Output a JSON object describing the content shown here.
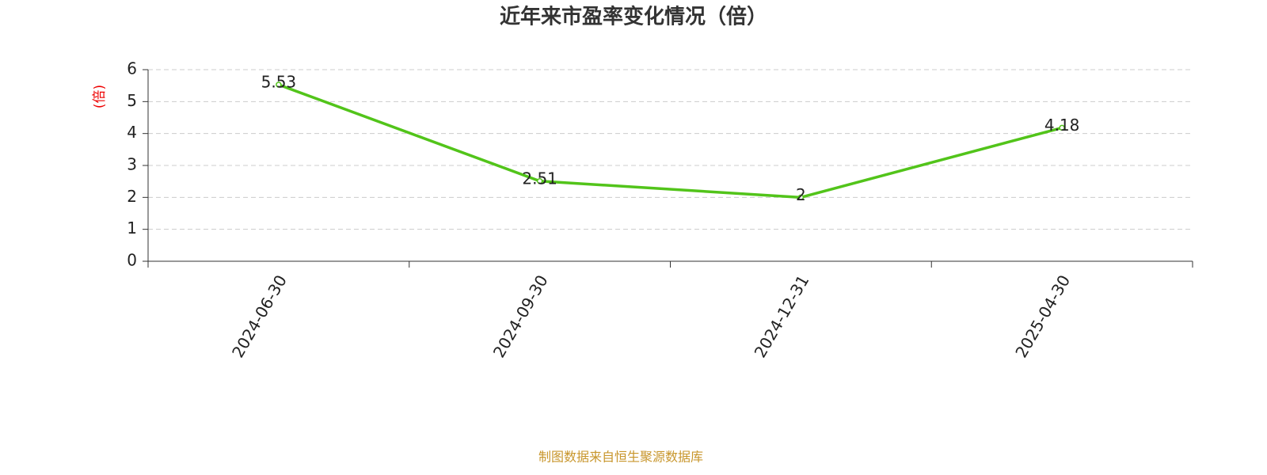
{
  "chart_data": {
    "type": "line",
    "title": "近年来市盈率变化情况（倍）",
    "y_label": "(倍)",
    "categories": [
      "2024-06-30",
      "2024-09-30",
      "2024-12-31",
      "2025-04-30"
    ],
    "values": [
      5.53,
      2.51,
      2,
      4.18
    ],
    "color": "#52c41a",
    "ylim": [
      0,
      6
    ],
    "yticks": [
      0,
      1,
      2,
      3,
      4,
      5,
      6
    ],
    "grid": true,
    "source": "制图数据来自恒生聚源数据库"
  }
}
